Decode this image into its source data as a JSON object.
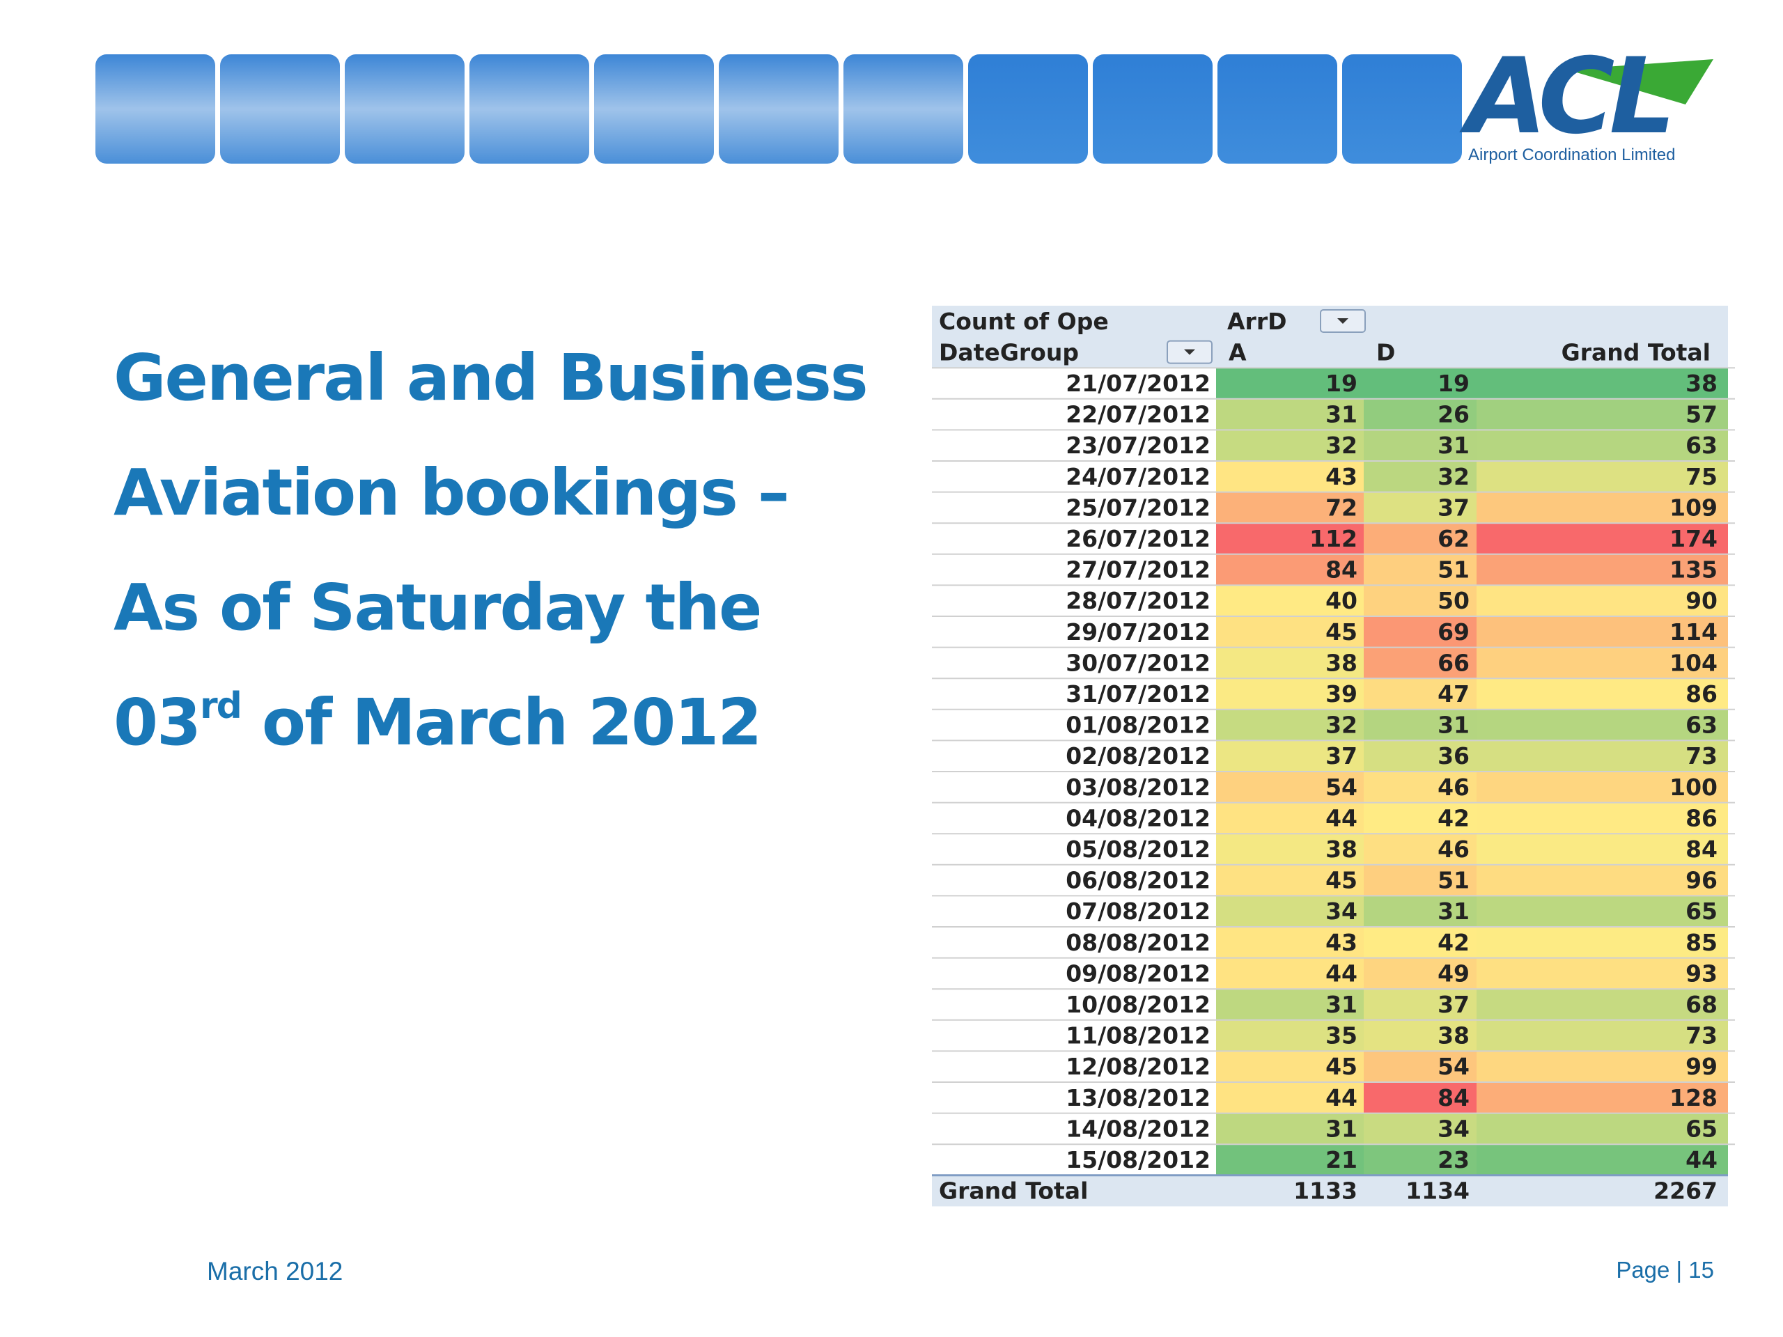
{
  "logo": {
    "name": "ACL",
    "tagline": "Airport Coordination Limited"
  },
  "title": {
    "lines": [
      "General and Business",
      "Aviation bookings –",
      "As of Saturday the"
    ],
    "last": {
      "day": "03",
      "suffix": "rd",
      "rest": " of March 2012"
    }
  },
  "table": {
    "corner": "Count of Ope",
    "column_field": "ArrD",
    "row_field": "DateGroup",
    "columns": [
      "A",
      "D",
      "Grand Total"
    ],
    "rows": [
      [
        "21/07/2012",
        19,
        19,
        38
      ],
      [
        "22/07/2012",
        31,
        26,
        57
      ],
      [
        "23/07/2012",
        32,
        31,
        63
      ],
      [
        "24/07/2012",
        43,
        32,
        75
      ],
      [
        "25/07/2012",
        72,
        37,
        109
      ],
      [
        "26/07/2012",
        112,
        62,
        174
      ],
      [
        "27/07/2012",
        84,
        51,
        135
      ],
      [
        "28/07/2012",
        40,
        50,
        90
      ],
      [
        "29/07/2012",
        45,
        69,
        114
      ],
      [
        "30/07/2012",
        38,
        66,
        104
      ],
      [
        "31/07/2012",
        39,
        47,
        86
      ],
      [
        "01/08/2012",
        32,
        31,
        63
      ],
      [
        "02/08/2012",
        37,
        36,
        73
      ],
      [
        "03/08/2012",
        54,
        46,
        100
      ],
      [
        "04/08/2012",
        44,
        42,
        86
      ],
      [
        "05/08/2012",
        38,
        46,
        84
      ],
      [
        "06/08/2012",
        45,
        51,
        96
      ],
      [
        "07/08/2012",
        34,
        31,
        65
      ],
      [
        "08/08/2012",
        43,
        42,
        85
      ],
      [
        "09/08/2012",
        44,
        49,
        93
      ],
      [
        "10/08/2012",
        31,
        37,
        68
      ],
      [
        "11/08/2012",
        35,
        38,
        73
      ],
      [
        "12/08/2012",
        45,
        54,
        99
      ],
      [
        "13/08/2012",
        44,
        84,
        128
      ],
      [
        "14/08/2012",
        31,
        34,
        65
      ],
      [
        "15/08/2012",
        21,
        23,
        44
      ]
    ],
    "total": {
      "label": "Grand Total",
      "values": [
        1133,
        1134,
        2267
      ]
    }
  },
  "footer": {
    "date": "March 2012",
    "page": "Page | 15"
  }
}
